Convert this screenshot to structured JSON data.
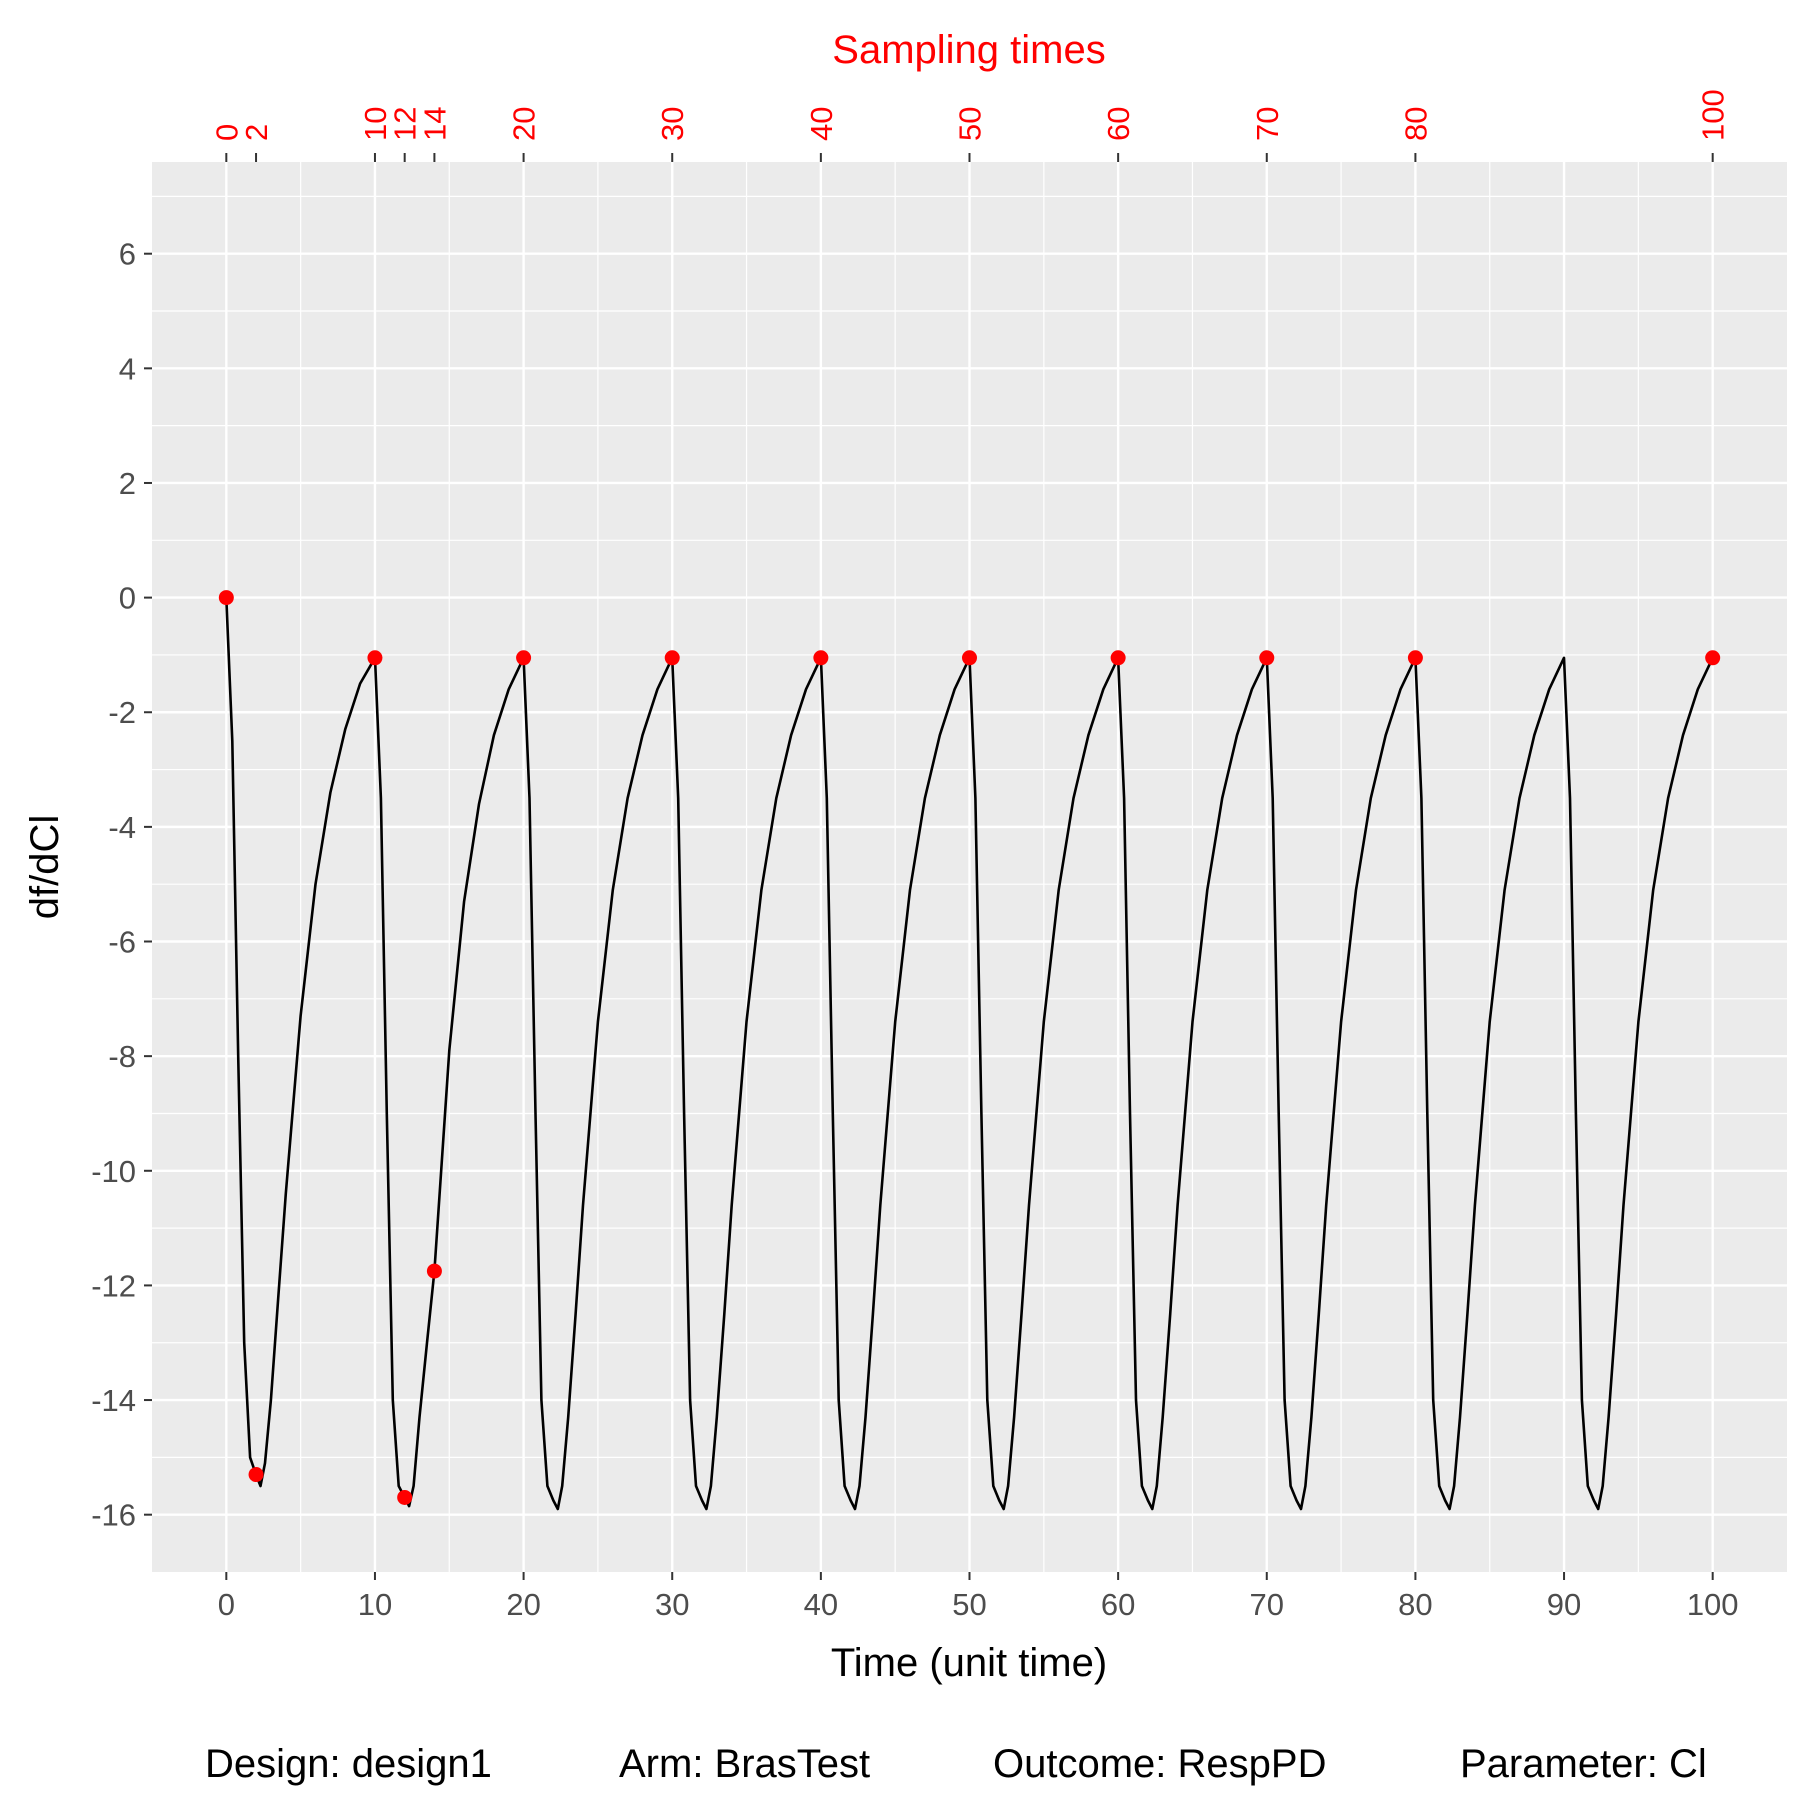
{
  "colors": {
    "panel": "#ebebeb",
    "grid": "#ffffff",
    "curve": "#000000",
    "points": "#ff0000",
    "top_axis": "#ff0000",
    "tick_text": "#4d4d4d"
  },
  "chart_data": {
    "type": "line",
    "title": "",
    "xlabel": "Time (unit time)",
    "ylabel": "df/dCl",
    "top_axis_label": "Sampling times",
    "xlim": [
      -5,
      105
    ],
    "ylim": [
      -17.0,
      7.6
    ],
    "x_ticks": [
      0,
      10,
      20,
      30,
      40,
      50,
      60,
      70,
      80,
      90,
      100
    ],
    "x_tick_labels": [
      "0",
      "10",
      "20",
      "30",
      "40",
      "50",
      "60",
      "70",
      "80",
      "90",
      "100"
    ],
    "y_ticks": [
      6,
      4,
      2,
      0,
      -2,
      -4,
      -6,
      -8,
      -10,
      -12,
      -14,
      -16
    ],
    "y_tick_labels": [
      "6",
      "4",
      "2",
      "0",
      "-2",
      "-4",
      "-6",
      "-8",
      "-10",
      "-12",
      "-14",
      "-16"
    ],
    "top_ticks": [
      0,
      2,
      10,
      12,
      14,
      20,
      30,
      40,
      50,
      60,
      70,
      80,
      100
    ],
    "top_tick_labels": [
      "0",
      "2",
      "10",
      "12",
      "14",
      "20",
      "30",
      "40",
      "50",
      "60",
      "70",
      "80",
      "100"
    ],
    "grid": true,
    "curve": {
      "x": [
        0,
        0.4,
        0.8,
        1.2,
        1.6,
        2.0,
        2.3,
        2.6,
        3.0,
        3.5,
        4.0,
        5.0,
        6.0,
        7.0,
        8.0,
        9.0,
        10.0,
        10.4,
        10.8,
        11.2,
        11.6,
        12.0,
        12.3,
        12.6,
        13.0,
        13.5,
        14.0,
        15.0,
        16.0,
        17.0,
        18.0,
        19.0,
        20.0,
        20.4,
        20.8,
        21.2,
        21.6,
        22.0,
        22.3,
        22.6,
        23.0,
        23.5,
        24.0,
        25.0,
        26.0,
        27.0,
        28.0,
        29.0,
        30.0,
        30.4,
        30.8,
        31.2,
        31.6,
        32.0,
        32.3,
        32.6,
        33.0,
        33.5,
        34.0,
        35.0,
        36.0,
        37.0,
        38.0,
        39.0,
        40.0,
        40.4,
        40.8,
        41.2,
        41.6,
        42.0,
        42.3,
        42.6,
        43.0,
        43.5,
        44.0,
        45.0,
        46.0,
        47.0,
        48.0,
        49.0,
        50.0,
        50.4,
        50.8,
        51.2,
        51.6,
        52.0,
        52.3,
        52.6,
        53.0,
        53.5,
        54.0,
        55.0,
        56.0,
        57.0,
        58.0,
        59.0,
        60.0,
        60.4,
        60.8,
        61.2,
        61.6,
        62.0,
        62.3,
        62.6,
        63.0,
        63.5,
        64.0,
        65.0,
        66.0,
        67.0,
        68.0,
        69.0,
        70.0,
        70.4,
        70.8,
        71.2,
        71.6,
        72.0,
        72.3,
        72.6,
        73.0,
        73.5,
        74.0,
        75.0,
        76.0,
        77.0,
        78.0,
        79.0,
        80.0,
        80.4,
        80.8,
        81.2,
        81.6,
        82.0,
        82.3,
        82.6,
        83.0,
        83.5,
        84.0,
        85.0,
        86.0,
        87.0,
        88.0,
        89.0,
        90.0,
        90.4,
        90.8,
        91.2,
        91.6,
        92.0,
        92.3,
        92.6,
        93.0,
        93.5,
        94.0,
        95.0,
        96.0,
        97.0,
        98.0,
        99.0,
        100.0
      ],
      "y": [
        0,
        -2.5,
        -8.0,
        -13.0,
        -15.0,
        -15.3,
        -15.5,
        -15.1,
        -14.0,
        -12.2,
        -10.4,
        -7.3,
        -5.0,
        -3.4,
        -2.3,
        -1.5,
        -1.05,
        -3.5,
        -9.0,
        -14.0,
        -15.5,
        -15.7,
        -15.85,
        -15.5,
        -14.3,
        -13.0,
        -11.75,
        -7.9,
        -5.3,
        -3.6,
        -2.4,
        -1.6,
        -1.05,
        -3.5,
        -9.0,
        -14.0,
        -15.5,
        -15.75,
        -15.9,
        -15.5,
        -14.3,
        -12.5,
        -10.6,
        -7.4,
        -5.1,
        -3.5,
        -2.4,
        -1.6,
        -1.05,
        -3.5,
        -9.0,
        -14.0,
        -15.5,
        -15.75,
        -15.9,
        -15.5,
        -14.3,
        -12.5,
        -10.6,
        -7.4,
        -5.1,
        -3.5,
        -2.4,
        -1.6,
        -1.05,
        -3.5,
        -9.0,
        -14.0,
        -15.5,
        -15.75,
        -15.9,
        -15.5,
        -14.3,
        -12.5,
        -10.6,
        -7.4,
        -5.1,
        -3.5,
        -2.4,
        -1.6,
        -1.05,
        -3.5,
        -9.0,
        -14.0,
        -15.5,
        -15.75,
        -15.9,
        -15.5,
        -14.3,
        -12.5,
        -10.6,
        -7.4,
        -5.1,
        -3.5,
        -2.4,
        -1.6,
        -1.05,
        -3.5,
        -9.0,
        -14.0,
        -15.5,
        -15.75,
        -15.9,
        -15.5,
        -14.3,
        -12.5,
        -10.6,
        -7.4,
        -5.1,
        -3.5,
        -2.4,
        -1.6,
        -1.05,
        -3.5,
        -9.0,
        -14.0,
        -15.5,
        -15.75,
        -15.9,
        -15.5,
        -14.3,
        -12.5,
        -10.6,
        -7.4,
        -5.1,
        -3.5,
        -2.4,
        -1.6,
        -1.05,
        -3.5,
        -9.0,
        -14.0,
        -15.5,
        -15.75,
        -15.9,
        -15.5,
        -14.3,
        -12.5,
        -10.6,
        -7.4,
        -5.1,
        -3.5,
        -2.4,
        -1.6,
        -1.05,
        -3.5,
        -9.0,
        -14.0,
        -15.5,
        -15.75,
        -15.9,
        -15.5,
        -14.3,
        -12.5,
        -10.6,
        -7.4,
        -5.1,
        -3.5,
        -2.4,
        -1.6,
        -1.05
      ]
    },
    "points": {
      "x": [
        0,
        2,
        10,
        12,
        14,
        20,
        30,
        40,
        50,
        60,
        70,
        80,
        100
      ],
      "y": [
        0,
        -15.3,
        -1.05,
        -15.7,
        -11.75,
        -1.05,
        -1.05,
        -1.05,
        -1.05,
        -1.05,
        -1.05,
        -1.05,
        -1.05
      ]
    }
  },
  "caption": {
    "design": "Design: design1",
    "arm": "Arm: BrasTest",
    "outcome": "Outcome: RespPD",
    "parameter": "Parameter: Cl"
  }
}
